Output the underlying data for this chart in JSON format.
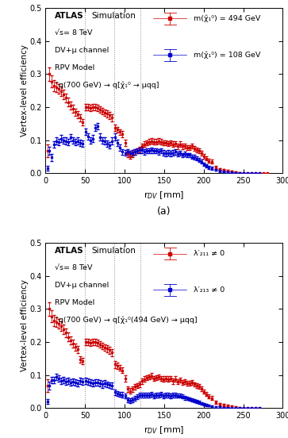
{
  "panel_a": {
    "info_line1": "ATLAS",
    "info_line1b": " Simulation",
    "info_lines": [
      "√s= 8 TeV",
      "DV+μ channel",
      "RPV Model",
      "˜q(700 GeV) → q[χ̂₁⁰ → μqq]"
    ],
    "legend_labels": [
      "m(χ̂₁⁰) = 494 GeV",
      "m(χ̂₁⁰) = 108 GeV"
    ],
    "vlines": [
      50,
      87,
      120
    ],
    "red_x": [
      3,
      5,
      8,
      11,
      14,
      17,
      20,
      23,
      26,
      29,
      32,
      35,
      38,
      41,
      44,
      47,
      51,
      54,
      57,
      60,
      63,
      66,
      69,
      72,
      75,
      78,
      81,
      84,
      88,
      91,
      94,
      97,
      101,
      104,
      107,
      110,
      113,
      116,
      119,
      122,
      125,
      128,
      131,
      134,
      137,
      140,
      143,
      146,
      149,
      152,
      155,
      158,
      161,
      164,
      167,
      170,
      173,
      176,
      179,
      182,
      185,
      188,
      191,
      194,
      197,
      200,
      203,
      206,
      210,
      215,
      220,
      225,
      230,
      235,
      240,
      245,
      250,
      255,
      260,
      265,
      270,
      275,
      280
    ],
    "red_y": [
      0.068,
      0.3,
      0.278,
      0.265,
      0.26,
      0.255,
      0.248,
      0.238,
      0.228,
      0.215,
      0.205,
      0.195,
      0.185,
      0.178,
      0.168,
      0.155,
      0.2,
      0.2,
      0.198,
      0.2,
      0.2,
      0.198,
      0.193,
      0.188,
      0.183,
      0.18,
      0.175,
      0.168,
      0.138,
      0.132,
      0.125,
      0.118,
      0.092,
      0.058,
      0.052,
      0.058,
      0.065,
      0.068,
      0.072,
      0.082,
      0.088,
      0.092,
      0.095,
      0.098,
      0.095,
      0.095,
      0.098,
      0.095,
      0.092,
      0.092,
      0.09,
      0.092,
      0.088,
      0.09,
      0.082,
      0.088,
      0.082,
      0.082,
      0.078,
      0.078,
      0.082,
      0.075,
      0.07,
      0.068,
      0.06,
      0.052,
      0.045,
      0.038,
      0.035,
      0.018,
      0.012,
      0.01,
      0.008,
      0.005,
      0.003,
      0.002,
      0.001,
      0.001,
      0.001,
      0.001,
      0.001,
      0.001,
      0.001
    ],
    "red_yerr": [
      0.02,
      0.02,
      0.018,
      0.016,
      0.015,
      0.015,
      0.015,
      0.014,
      0.013,
      0.013,
      0.012,
      0.012,
      0.011,
      0.011,
      0.01,
      0.01,
      0.01,
      0.01,
      0.01,
      0.01,
      0.01,
      0.01,
      0.01,
      0.01,
      0.01,
      0.01,
      0.01,
      0.01,
      0.01,
      0.009,
      0.009,
      0.009,
      0.009,
      0.008,
      0.008,
      0.008,
      0.008,
      0.008,
      0.008,
      0.008,
      0.008,
      0.008,
      0.008,
      0.008,
      0.008,
      0.008,
      0.008,
      0.008,
      0.008,
      0.008,
      0.008,
      0.008,
      0.008,
      0.008,
      0.008,
      0.008,
      0.008,
      0.007,
      0.007,
      0.007,
      0.007,
      0.007,
      0.007,
      0.007,
      0.007,
      0.007,
      0.006,
      0.006,
      0.006,
      0.005,
      0.004,
      0.004,
      0.003,
      0.003,
      0.002,
      0.001,
      0.001,
      0.001,
      0.001,
      0.001,
      0.001,
      0.001,
      0.001
    ],
    "blue_x": [
      3,
      5,
      8,
      11,
      14,
      17,
      20,
      23,
      26,
      29,
      32,
      35,
      38,
      41,
      44,
      47,
      51,
      54,
      57,
      60,
      63,
      66,
      69,
      72,
      75,
      78,
      81,
      84,
      88,
      91,
      94,
      97,
      101,
      104,
      107,
      110,
      113,
      116,
      119,
      122,
      125,
      128,
      131,
      134,
      137,
      140,
      143,
      146,
      149,
      152,
      155,
      158,
      161,
      164,
      167,
      170,
      173,
      176,
      179,
      182,
      185,
      188,
      191,
      194,
      197,
      200,
      203,
      206,
      210,
      215,
      220,
      225,
      230,
      235,
      240,
      245,
      250,
      255,
      260,
      265,
      270
    ],
    "blue_y": [
      0.015,
      0.068,
      0.048,
      0.088,
      0.098,
      0.095,
      0.105,
      0.1,
      0.098,
      0.095,
      0.108,
      0.1,
      0.095,
      0.098,
      0.092,
      0.09,
      0.125,
      0.112,
      0.1,
      0.105,
      0.138,
      0.142,
      0.11,
      0.1,
      0.098,
      0.09,
      0.085,
      0.098,
      0.11,
      0.092,
      0.078,
      0.065,
      0.062,
      0.065,
      0.06,
      0.062,
      0.065,
      0.068,
      0.07,
      0.07,
      0.065,
      0.068,
      0.068,
      0.07,
      0.068,
      0.068,
      0.065,
      0.068,
      0.062,
      0.06,
      0.062,
      0.06,
      0.062,
      0.065,
      0.058,
      0.06,
      0.055,
      0.058,
      0.055,
      0.055,
      0.05,
      0.048,
      0.045,
      0.04,
      0.035,
      0.028,
      0.022,
      0.018,
      0.015,
      0.01,
      0.007,
      0.005,
      0.004,
      0.003,
      0.002,
      0.001,
      0.001,
      0.001,
      0.001,
      0.001,
      0.001
    ],
    "blue_yerr": [
      0.008,
      0.012,
      0.01,
      0.01,
      0.01,
      0.01,
      0.01,
      0.01,
      0.01,
      0.01,
      0.01,
      0.01,
      0.01,
      0.01,
      0.01,
      0.01,
      0.01,
      0.01,
      0.01,
      0.01,
      0.01,
      0.01,
      0.01,
      0.01,
      0.01,
      0.01,
      0.01,
      0.01,
      0.01,
      0.009,
      0.009,
      0.008,
      0.008,
      0.008,
      0.008,
      0.008,
      0.008,
      0.008,
      0.008,
      0.008,
      0.008,
      0.008,
      0.008,
      0.008,
      0.008,
      0.008,
      0.008,
      0.008,
      0.008,
      0.008,
      0.008,
      0.008,
      0.008,
      0.008,
      0.007,
      0.007,
      0.007,
      0.007,
      0.007,
      0.007,
      0.007,
      0.007,
      0.006,
      0.006,
      0.006,
      0.005,
      0.005,
      0.004,
      0.004,
      0.003,
      0.003,
      0.002,
      0.002,
      0.001,
      0.001,
      0.001,
      0.001,
      0.001,
      0.001,
      0.001,
      0.001
    ]
  },
  "panel_b": {
    "info_line1": "ATLAS",
    "info_line1b": " Simulation",
    "info_lines": [
      "√s= 8 TeV",
      "DV+μ channel",
      "RPV Model",
      "˜q(700 GeV) → q[χ̂₁⁰(494 GeV) → μqq]"
    ],
    "legend_labels": [
      "λ′₂₁₁ ≠ 0",
      "λ′₂₁₃ ≠ 0"
    ],
    "vlines": [
      50,
      87,
      120
    ],
    "red_x": [
      3,
      5,
      8,
      11,
      14,
      17,
      20,
      23,
      26,
      29,
      32,
      35,
      38,
      41,
      44,
      47,
      51,
      54,
      57,
      60,
      63,
      66,
      69,
      72,
      75,
      78,
      81,
      84,
      88,
      91,
      94,
      97,
      101,
      104,
      107,
      110,
      113,
      116,
      119,
      122,
      125,
      128,
      131,
      134,
      137,
      140,
      143,
      146,
      149,
      152,
      155,
      158,
      161,
      164,
      167,
      170,
      173,
      176,
      179,
      182,
      185,
      188,
      191,
      194,
      197,
      200,
      203,
      206,
      210,
      215,
      220,
      225,
      230,
      235,
      240,
      245,
      250,
      255,
      260,
      265,
      270
    ],
    "red_y": [
      0.068,
      0.3,
      0.278,
      0.265,
      0.26,
      0.255,
      0.248,
      0.238,
      0.228,
      0.215,
      0.205,
      0.195,
      0.185,
      0.178,
      0.147,
      0.142,
      0.2,
      0.2,
      0.198,
      0.2,
      0.2,
      0.198,
      0.193,
      0.188,
      0.183,
      0.18,
      0.175,
      0.168,
      0.132,
      0.128,
      0.122,
      0.115,
      0.09,
      0.058,
      0.052,
      0.058,
      0.065,
      0.068,
      0.072,
      0.082,
      0.088,
      0.092,
      0.095,
      0.098,
      0.09,
      0.092,
      0.095,
      0.09,
      0.088,
      0.09,
      0.088,
      0.09,
      0.082,
      0.088,
      0.08,
      0.085,
      0.078,
      0.08,
      0.075,
      0.075,
      0.078,
      0.072,
      0.068,
      0.065,
      0.058,
      0.05,
      0.042,
      0.035,
      0.03,
      0.018,
      0.012,
      0.01,
      0.008,
      0.005,
      0.003,
      0.002,
      0.001,
      0.001,
      0.001,
      0.001,
      0.001
    ],
    "red_yerr": [
      0.02,
      0.02,
      0.018,
      0.016,
      0.015,
      0.015,
      0.015,
      0.014,
      0.013,
      0.013,
      0.012,
      0.012,
      0.011,
      0.011,
      0.01,
      0.01,
      0.01,
      0.01,
      0.01,
      0.01,
      0.01,
      0.01,
      0.01,
      0.01,
      0.01,
      0.01,
      0.01,
      0.01,
      0.01,
      0.009,
      0.009,
      0.009,
      0.009,
      0.008,
      0.008,
      0.008,
      0.008,
      0.008,
      0.008,
      0.008,
      0.008,
      0.008,
      0.008,
      0.008,
      0.008,
      0.008,
      0.008,
      0.008,
      0.008,
      0.008,
      0.008,
      0.008,
      0.008,
      0.008,
      0.008,
      0.008,
      0.007,
      0.007,
      0.007,
      0.007,
      0.007,
      0.007,
      0.007,
      0.007,
      0.007,
      0.006,
      0.006,
      0.006,
      0.006,
      0.005,
      0.004,
      0.004,
      0.003,
      0.003,
      0.002,
      0.001,
      0.001,
      0.001,
      0.001,
      0.001,
      0.001
    ],
    "blue_x": [
      3,
      5,
      8,
      11,
      14,
      17,
      20,
      23,
      26,
      29,
      32,
      35,
      38,
      41,
      44,
      47,
      51,
      54,
      57,
      60,
      63,
      66,
      69,
      72,
      75,
      78,
      81,
      84,
      88,
      91,
      94,
      97,
      101,
      104,
      107,
      110,
      113,
      116,
      119,
      122,
      125,
      128,
      131,
      134,
      137,
      140,
      143,
      146,
      149,
      152,
      155,
      158,
      161,
      164,
      167,
      170,
      173,
      176,
      179,
      182,
      185,
      188,
      191,
      194,
      197,
      200,
      203,
      206,
      210,
      215,
      220,
      225,
      230,
      235,
      240,
      245,
      250,
      255,
      260,
      265,
      270
    ],
    "blue_y": [
      0.02,
      0.068,
      0.085,
      0.085,
      0.095,
      0.09,
      0.082,
      0.085,
      0.08,
      0.082,
      0.078,
      0.08,
      0.078,
      0.075,
      0.082,
      0.08,
      0.082,
      0.08,
      0.078,
      0.075,
      0.078,
      0.078,
      0.075,
      0.072,
      0.075,
      0.072,
      0.07,
      0.068,
      0.048,
      0.044,
      0.042,
      0.04,
      0.038,
      0.025,
      0.022,
      0.025,
      0.03,
      0.035,
      0.04,
      0.04,
      0.04,
      0.04,
      0.04,
      0.042,
      0.038,
      0.04,
      0.04,
      0.042,
      0.038,
      0.04,
      0.04,
      0.038,
      0.04,
      0.04,
      0.038,
      0.038,
      0.035,
      0.032,
      0.03,
      0.028,
      0.025,
      0.022,
      0.02,
      0.018,
      0.015,
      0.012,
      0.01,
      0.008,
      0.006,
      0.004,
      0.003,
      0.002,
      0.002,
      0.001,
      0.001,
      0.001,
      0.001,
      0.001,
      0.001,
      0.001,
      0.001
    ],
    "blue_yerr": [
      0.008,
      0.012,
      0.01,
      0.01,
      0.01,
      0.01,
      0.01,
      0.01,
      0.01,
      0.01,
      0.01,
      0.01,
      0.01,
      0.01,
      0.01,
      0.01,
      0.01,
      0.01,
      0.01,
      0.01,
      0.01,
      0.01,
      0.01,
      0.01,
      0.01,
      0.009,
      0.009,
      0.009,
      0.008,
      0.008,
      0.008,
      0.008,
      0.007,
      0.007,
      0.007,
      0.007,
      0.007,
      0.007,
      0.007,
      0.007,
      0.007,
      0.007,
      0.007,
      0.007,
      0.007,
      0.007,
      0.007,
      0.007,
      0.007,
      0.007,
      0.007,
      0.007,
      0.007,
      0.007,
      0.006,
      0.006,
      0.006,
      0.006,
      0.005,
      0.005,
      0.005,
      0.005,
      0.004,
      0.004,
      0.004,
      0.003,
      0.003,
      0.003,
      0.002,
      0.002,
      0.002,
      0.001,
      0.001,
      0.001,
      0.001,
      0.001,
      0.001,
      0.001,
      0.001,
      0.001,
      0.001
    ]
  },
  "xlim": [
    0,
    300
  ],
  "ylim": [
    0,
    0.5
  ],
  "yticks": [
    0.0,
    0.1,
    0.2,
    0.3,
    0.4,
    0.5
  ],
  "xticks": [
    0,
    50,
    100,
    150,
    200,
    250,
    300
  ],
  "xlabel": "r$_{DV}$ [mm]",
  "ylabel": "Vertex-level efficiency",
  "bg_color": "#ffffff",
  "red_color": "#cc0000",
  "blue_color": "#0000cc",
  "marker": "s",
  "markersize": 2.0,
  "capsize": 1.2,
  "linewidth": 0.5,
  "elinewidth": 0.6
}
